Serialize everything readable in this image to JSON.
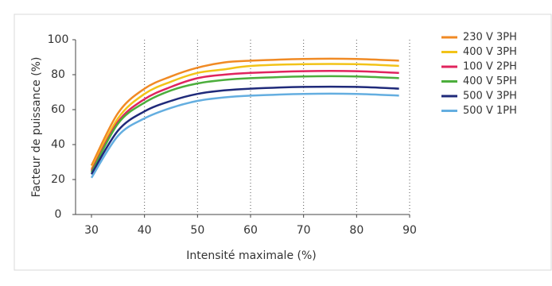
{
  "chart_data": {
    "type": "line",
    "y_label": "Facteur de puissance (%)",
    "x_label": "Intensité maximale (%)",
    "x": [
      30,
      35,
      40,
      45,
      50,
      55,
      60,
      70,
      80,
      88
    ],
    "xlim": [
      27,
      90
    ],
    "xticks": [
      30,
      40,
      50,
      60,
      70,
      80,
      90
    ],
    "ylim": [
      0,
      100
    ],
    "yticks": [
      0,
      20,
      40,
      60,
      80,
      100
    ],
    "grid": true,
    "series": [
      {
        "name": "230 V 3PH",
        "color": "#f08a24",
        "values": [
          28,
          58,
          72,
          79,
          84,
          87,
          88,
          89,
          89,
          88
        ]
      },
      {
        "name": "400 V 3PH",
        "color": "#f2c318",
        "values": [
          26,
          55,
          69,
          76,
          81,
          83,
          85,
          86,
          86,
          85
        ]
      },
      {
        "name": "100 V 2PH",
        "color": "#e0245e",
        "values": [
          25,
          53,
          66,
          73,
          78,
          80,
          81,
          82,
          82,
          81
        ]
      },
      {
        "name": "400 V 5PH",
        "color": "#4cae3c",
        "values": [
          24,
          52,
          64,
          71,
          75,
          77,
          78,
          79,
          79,
          78
        ]
      },
      {
        "name": "500 V 3PH",
        "color": "#1f2a7a",
        "values": [
          23,
          48,
          59,
          65,
          69,
          71,
          72,
          73,
          73,
          72
        ]
      },
      {
        "name": "500 V 1PH",
        "color": "#64aee0",
        "values": [
          21,
          45,
          55,
          61,
          65,
          67,
          68,
          69,
          69,
          68
        ]
      }
    ]
  }
}
